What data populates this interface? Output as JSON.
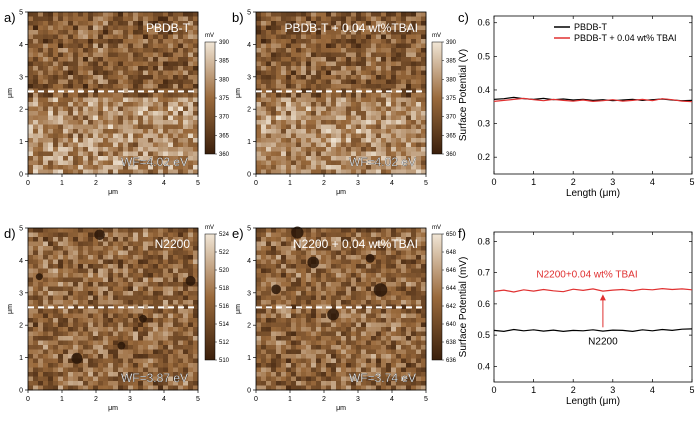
{
  "chart_data": [
    {
      "type": "heatmap",
      "panel": "a)",
      "title": "PBDB-T",
      "annotation": "WF=4.02 eV",
      "xlabel": "μm",
      "ylabel": "μm",
      "xlim": [
        0,
        5
      ],
      "ylim": [
        0,
        5
      ],
      "xticks": [
        "0",
        "1",
        "2",
        "3",
        "4",
        "5"
      ],
      "yticks": [
        "0",
        "1",
        "2",
        "3",
        "4",
        "5"
      ],
      "colorbar_unit": "mV",
      "colorbar_ticks": [
        "390",
        "385",
        "380",
        "375",
        "370",
        "365",
        "360"
      ],
      "colorbar_range": [
        360,
        390
      ],
      "line_profile_y": 2.55,
      "colors": {
        "dark": "#3a1f0c",
        "mid": "#9a6a3c",
        "light": "#f1e6d6"
      }
    },
    {
      "type": "heatmap",
      "panel": "b)",
      "title": "PBDB-T + 0.04 wt%TBAI",
      "annotation": "WF=4.02 eV",
      "xlabel": "μm",
      "ylabel": "μm",
      "xlim": [
        0,
        5
      ],
      "ylim": [
        0,
        5
      ],
      "xticks": [
        "0",
        "1",
        "2",
        "3",
        "4",
        "5"
      ],
      "yticks": [
        "0",
        "1",
        "2",
        "3",
        "4",
        "5"
      ],
      "colorbar_unit": "mV",
      "colorbar_ticks": [
        "390",
        "385",
        "380",
        "375",
        "370",
        "365",
        "360"
      ],
      "colorbar_range": [
        360,
        390
      ],
      "line_profile_y": 2.55
    },
    {
      "type": "line",
      "panel": "c)",
      "xlabel": "Length (μm)",
      "ylabel": "Surface Potential (V)",
      "xlim": [
        0,
        5
      ],
      "ylim": [
        0.15,
        0.62
      ],
      "xticks": [
        "0",
        "1",
        "2",
        "3",
        "4",
        "5"
      ],
      "yticks": [
        "0.2",
        "0.3",
        "0.4",
        "0.5",
        "0.6"
      ],
      "legend_position": "top-right",
      "x": [
        0,
        0.25,
        0.5,
        0.75,
        1,
        1.25,
        1.5,
        1.75,
        2,
        2.25,
        2.5,
        2.75,
        3,
        3.25,
        3.5,
        3.75,
        4,
        4.25,
        4.5,
        4.75,
        5
      ],
      "series": [
        {
          "name": "PBDB-T",
          "color": "#000000",
          "values": [
            0.372,
            0.374,
            0.378,
            0.374,
            0.372,
            0.375,
            0.371,
            0.373,
            0.37,
            0.372,
            0.369,
            0.371,
            0.368,
            0.37,
            0.372,
            0.369,
            0.371,
            0.373,
            0.37,
            0.368,
            0.369
          ]
        },
        {
          "name": "PBDB-T + 0.04 wt% TBAI",
          "color": "#e03030",
          "values": [
            0.366,
            0.369,
            0.372,
            0.375,
            0.371,
            0.368,
            0.372,
            0.369,
            0.367,
            0.37,
            0.366,
            0.368,
            0.371,
            0.367,
            0.369,
            0.372,
            0.368,
            0.374,
            0.371,
            0.367,
            0.365
          ]
        }
      ]
    },
    {
      "type": "heatmap",
      "panel": "d)",
      "title": "N2200",
      "annotation": "WF=3.87 eV",
      "xlabel": "μm",
      "ylabel": "μm",
      "xlim": [
        0,
        5
      ],
      "ylim": [
        0,
        5
      ],
      "xticks": [
        "0",
        "1",
        "2",
        "3",
        "4",
        "5"
      ],
      "yticks": [
        "0",
        "1",
        "2",
        "3",
        "4",
        "5"
      ],
      "colorbar_unit": "mV",
      "colorbar_ticks": [
        "524",
        "522",
        "520",
        "518",
        "516",
        "514",
        "512",
        "510"
      ],
      "colorbar_range": [
        510,
        525
      ],
      "line_profile_y": 2.55
    },
    {
      "type": "heatmap",
      "panel": "e)",
      "title": "N2200 + 0.04 wt%TBAI",
      "annotation": "WF=3.74 eV",
      "xlabel": "μm",
      "ylabel": "μm",
      "xlim": [
        0,
        5
      ],
      "ylim": [
        0,
        5
      ],
      "xticks": [
        "0",
        "1",
        "2",
        "3",
        "4",
        "5"
      ],
      "yticks": [
        "0",
        "1",
        "2",
        "3",
        "4",
        "5"
      ],
      "colorbar_unit": "mV",
      "colorbar_ticks": [
        "650",
        "648",
        "646",
        "644",
        "642",
        "640",
        "638",
        "636"
      ],
      "colorbar_range": [
        636,
        651
      ],
      "line_profile_y": 2.55
    },
    {
      "type": "line",
      "panel": "f)",
      "xlabel": "Length (μm)",
      "ylabel": "Surface Potential (mV)",
      "xlim": [
        0,
        5
      ],
      "ylim": [
        0.35,
        0.83
      ],
      "xticks": [
        "0",
        "1",
        "2",
        "3",
        "4",
        "5"
      ],
      "yticks": [
        "0.4",
        "0.5",
        "0.6",
        "0.7",
        "0.8"
      ],
      "x": [
        0,
        0.25,
        0.5,
        0.75,
        1,
        1.25,
        1.5,
        1.75,
        2,
        2.25,
        2.5,
        2.75,
        3,
        3.25,
        3.5,
        3.75,
        4,
        4.25,
        4.5,
        4.75,
        5
      ],
      "series": [
        {
          "color": "#000000",
          "values": [
            0.515,
            0.512,
            0.518,
            0.514,
            0.517,
            0.513,
            0.516,
            0.512,
            0.515,
            0.514,
            0.517,
            0.513,
            0.516,
            0.515,
            0.512,
            0.517,
            0.514,
            0.518,
            0.515,
            0.519,
            0.52
          ]
        },
        {
          "color": "#e03030",
          "values": [
            0.64,
            0.644,
            0.638,
            0.645,
            0.641,
            0.646,
            0.642,
            0.639,
            0.647,
            0.643,
            0.648,
            0.641,
            0.644,
            0.646,
            0.642,
            0.647,
            0.645,
            0.649,
            0.646,
            0.648,
            0.645
          ]
        }
      ],
      "annotations": [
        {
          "text": "N2200+0.04 wt% TBAI",
          "color": "#e03030"
        },
        {
          "text": "N2200",
          "color": "#000000"
        }
      ],
      "arrow": {
        "x": 2.75,
        "from_y": 0.525,
        "to_y": 0.64,
        "color": "#e03030"
      }
    }
  ]
}
